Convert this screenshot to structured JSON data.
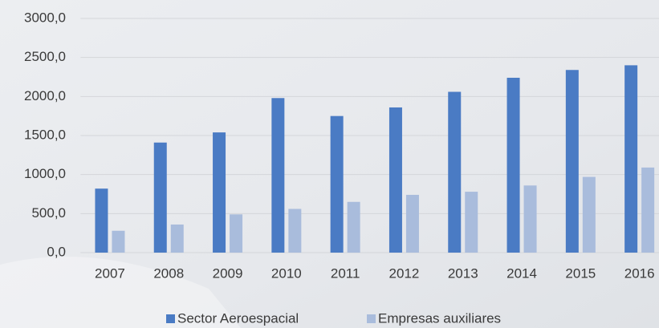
{
  "chart_data": {
    "type": "bar",
    "categories": [
      "2007",
      "2008",
      "2009",
      "2010",
      "2011",
      "2012",
      "2013",
      "2014",
      "2015",
      "2016"
    ],
    "series": [
      {
        "name": "Sector Aeroespacial",
        "color": "#4a7bc4",
        "values": [
          820,
          1410,
          1540,
          1980,
          1750,
          1860,
          2060,
          2240,
          2340,
          2400
        ]
      },
      {
        "name": "Empresas auxiliares",
        "color": "#a9bcdc",
        "values": [
          280,
          360,
          490,
          560,
          650,
          740,
          780,
          860,
          970,
          1090
        ]
      }
    ],
    "ylim": [
      0,
      3000
    ],
    "yticks": [
      {
        "value": 0,
        "label": "0,0"
      },
      {
        "value": 500,
        "label": "500,0"
      },
      {
        "value": 1000,
        "label": "1000,0"
      },
      {
        "value": 1500,
        "label": "1500,0"
      },
      {
        "value": 2000,
        "label": "2000,0"
      },
      {
        "value": 2500,
        "label": "2500,0"
      },
      {
        "value": 3000,
        "label": "3000,0"
      }
    ],
    "grid": true,
    "legend": "bottom"
  }
}
